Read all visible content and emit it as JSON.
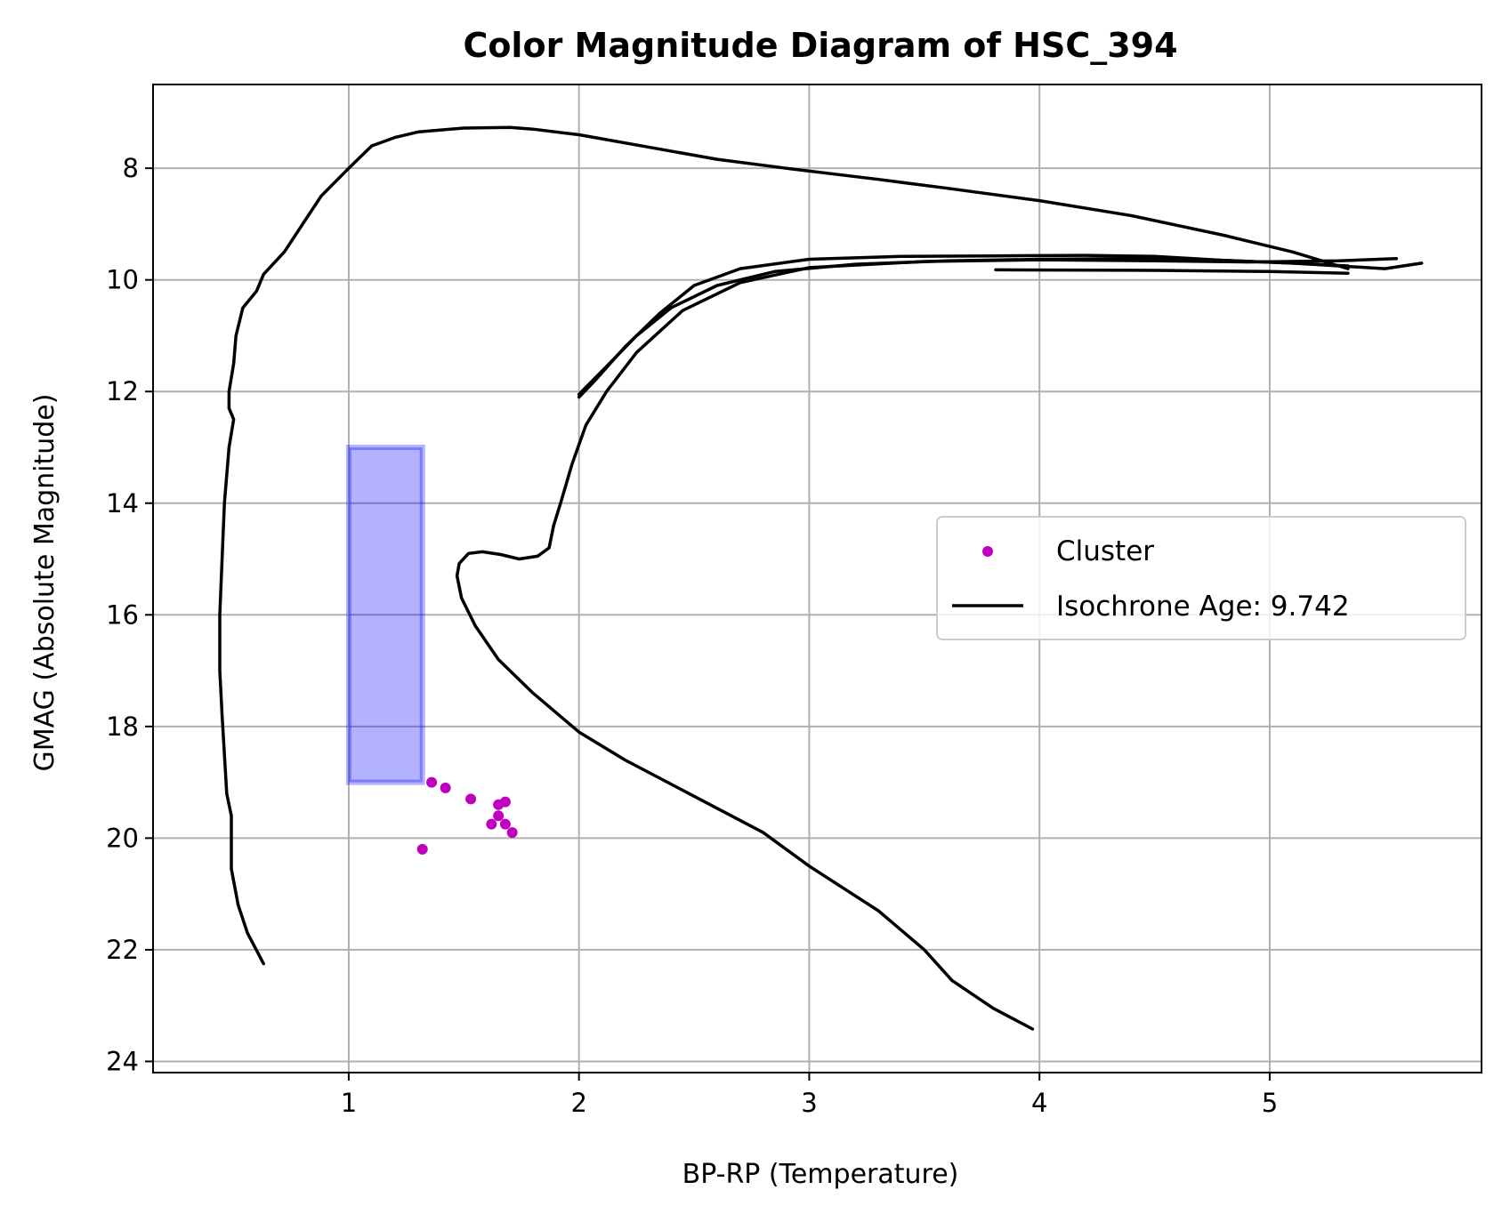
{
  "chart_data": {
    "type": "scatter",
    "title": "Color Magnitude Diagram of HSC_394",
    "xlabel": "BP-RP (Temperature)",
    "ylabel": "GMAG (Absolute Magnitude)",
    "xlim": [
      0.15,
      5.92
    ],
    "ylim": [
      24.2,
      6.5
    ],
    "y_inverted": true,
    "grid": true,
    "legend_position": "center-right",
    "x_ticks": [
      1,
      2,
      3,
      4,
      5
    ],
    "x_tick_labels": [
      "1",
      "2",
      "3",
      "4",
      "5"
    ],
    "y_ticks": [
      8,
      10,
      12,
      14,
      16,
      18,
      20,
      22,
      24
    ],
    "y_tick_labels": [
      "8",
      "10",
      "12",
      "14",
      "16",
      "18",
      "20",
      "22",
      "24"
    ],
    "legend": [
      {
        "label": "Cluster",
        "marker": "dot",
        "color": "#bf00bf"
      },
      {
        "label": "Isochrone Age: 9.742",
        "marker": "line",
        "color": "#000000"
      }
    ],
    "shaded_region": {
      "x": [
        1.0,
        1.32
      ],
      "y": [
        13.0,
        19.0
      ],
      "color": "#0000ff"
    },
    "series": [
      {
        "name": "Cluster",
        "kind": "scatter",
        "color": "#bf00bf",
        "points": [
          [
            1.36,
            19.0
          ],
          [
            1.42,
            19.1
          ],
          [
            1.53,
            19.3
          ],
          [
            1.65,
            19.4
          ],
          [
            1.68,
            19.35
          ],
          [
            1.65,
            19.6
          ],
          [
            1.62,
            19.75
          ],
          [
            1.68,
            19.75
          ],
          [
            1.71,
            19.9
          ],
          [
            1.32,
            20.2
          ]
        ]
      },
      {
        "name": "Isochrone Age: 9.742",
        "kind": "line",
        "color": "#000000",
        "segments": [
          [
            [
              0.63,
              22.25
            ],
            [
              0.56,
              21.7
            ],
            [
              0.52,
              21.2
            ],
            [
              0.49,
              20.55
            ],
            [
              0.49,
              20.0
            ],
            [
              0.49,
              19.6
            ],
            [
              0.47,
              19.2
            ],
            [
              0.46,
              18.5
            ],
            [
              0.45,
              17.8
            ],
            [
              0.44,
              17.0
            ],
            [
              0.44,
              16.0
            ],
            [
              0.45,
              15.0
            ],
            [
              0.46,
              14.0
            ],
            [
              0.48,
              13.0
            ],
            [
              0.5,
              12.5
            ],
            [
              0.48,
              12.3
            ],
            [
              0.48,
              12.0
            ],
            [
              0.5,
              11.5
            ],
            [
              0.51,
              11.0
            ],
            [
              0.54,
              10.5
            ],
            [
              0.6,
              10.2
            ],
            [
              0.63,
              9.9
            ],
            [
              0.72,
              9.5
            ],
            [
              0.8,
              9.0
            ],
            [
              0.88,
              8.5
            ],
            [
              1.0,
              8.0
            ],
            [
              1.1,
              7.6
            ],
            [
              1.2,
              7.45
            ],
            [
              1.3,
              7.35
            ],
            [
              1.5,
              7.28
            ],
            [
              1.7,
              7.27
            ],
            [
              1.8,
              7.3
            ],
            [
              2.0,
              7.4
            ],
            [
              2.3,
              7.62
            ],
            [
              2.6,
              7.84
            ],
            [
              2.9,
              8.0
            ],
            [
              3.3,
              8.2
            ],
            [
              3.6,
              8.36
            ],
            [
              4.0,
              8.58
            ],
            [
              4.4,
              8.85
            ],
            [
              4.8,
              9.2
            ],
            [
              5.1,
              9.5
            ],
            [
              5.3,
              9.75
            ],
            [
              5.34,
              9.8
            ]
          ],
          [
            [
              5.34,
              9.75
            ],
            [
              5.1,
              9.7
            ],
            [
              4.8,
              9.65
            ],
            [
              4.5,
              9.58
            ],
            [
              4.2,
              9.56
            ],
            [
              3.8,
              9.57
            ],
            [
              3.4,
              9.58
            ],
            [
              3.0,
              9.63
            ],
            [
              2.7,
              9.8
            ],
            [
              2.5,
              10.1
            ],
            [
              2.35,
              10.6
            ],
            [
              2.2,
              11.2
            ],
            [
              2.07,
              11.8
            ],
            [
              2.0,
              12.1
            ]
          ],
          [
            [
              2.0,
              12.05
            ],
            [
              2.12,
              11.55
            ],
            [
              2.25,
              11.0
            ],
            [
              2.4,
              10.5
            ],
            [
              2.6,
              10.1
            ],
            [
              2.85,
              9.85
            ],
            [
              3.2,
              9.72
            ],
            [
              3.6,
              9.66
            ],
            [
              4.0,
              9.63
            ],
            [
              4.4,
              9.62
            ],
            [
              4.8,
              9.65
            ],
            [
              5.1,
              9.7
            ],
            [
              5.3,
              9.75
            ],
            [
              5.5,
              9.8
            ],
            [
              5.66,
              9.7
            ]
          ],
          [
            [
              5.55,
              9.62
            ],
            [
              5.3,
              9.66
            ],
            [
              4.9,
              9.68
            ],
            [
              4.5,
              9.66
            ],
            [
              4.0,
              9.64
            ],
            [
              3.5,
              9.67
            ],
            [
              3.0,
              9.78
            ],
            [
              2.7,
              10.05
            ],
            [
              2.45,
              10.55
            ],
            [
              2.25,
              11.3
            ],
            [
              2.12,
              12.0
            ],
            [
              2.03,
              12.6
            ],
            [
              1.97,
              13.3
            ],
            [
              1.92,
              14.0
            ],
            [
              1.89,
              14.4
            ],
            [
              1.87,
              14.8
            ],
            [
              1.82,
              14.95
            ],
            [
              1.74,
              15.0
            ],
            [
              1.66,
              14.92
            ],
            [
              1.58,
              14.87
            ],
            [
              1.52,
              14.9
            ],
            [
              1.48,
              15.08
            ],
            [
              1.47,
              15.3
            ],
            [
              1.49,
              15.7
            ],
            [
              1.55,
              16.2
            ],
            [
              1.65,
              16.8
            ],
            [
              1.8,
              17.4
            ],
            [
              2.0,
              18.1
            ],
            [
              2.2,
              18.6
            ],
            [
              2.5,
              19.25
            ],
            [
              2.8,
              19.9
            ],
            [
              3.0,
              20.5
            ],
            [
              3.3,
              21.3
            ],
            [
              3.5,
              22.0
            ],
            [
              3.62,
              22.55
            ],
            [
              3.8,
              23.05
            ],
            [
              3.97,
              23.42
            ]
          ],
          [
            [
              3.81,
              9.82
            ],
            [
              4.5,
              9.83
            ],
            [
              5.0,
              9.85
            ],
            [
              5.34,
              9.88
            ]
          ]
        ]
      }
    ]
  }
}
